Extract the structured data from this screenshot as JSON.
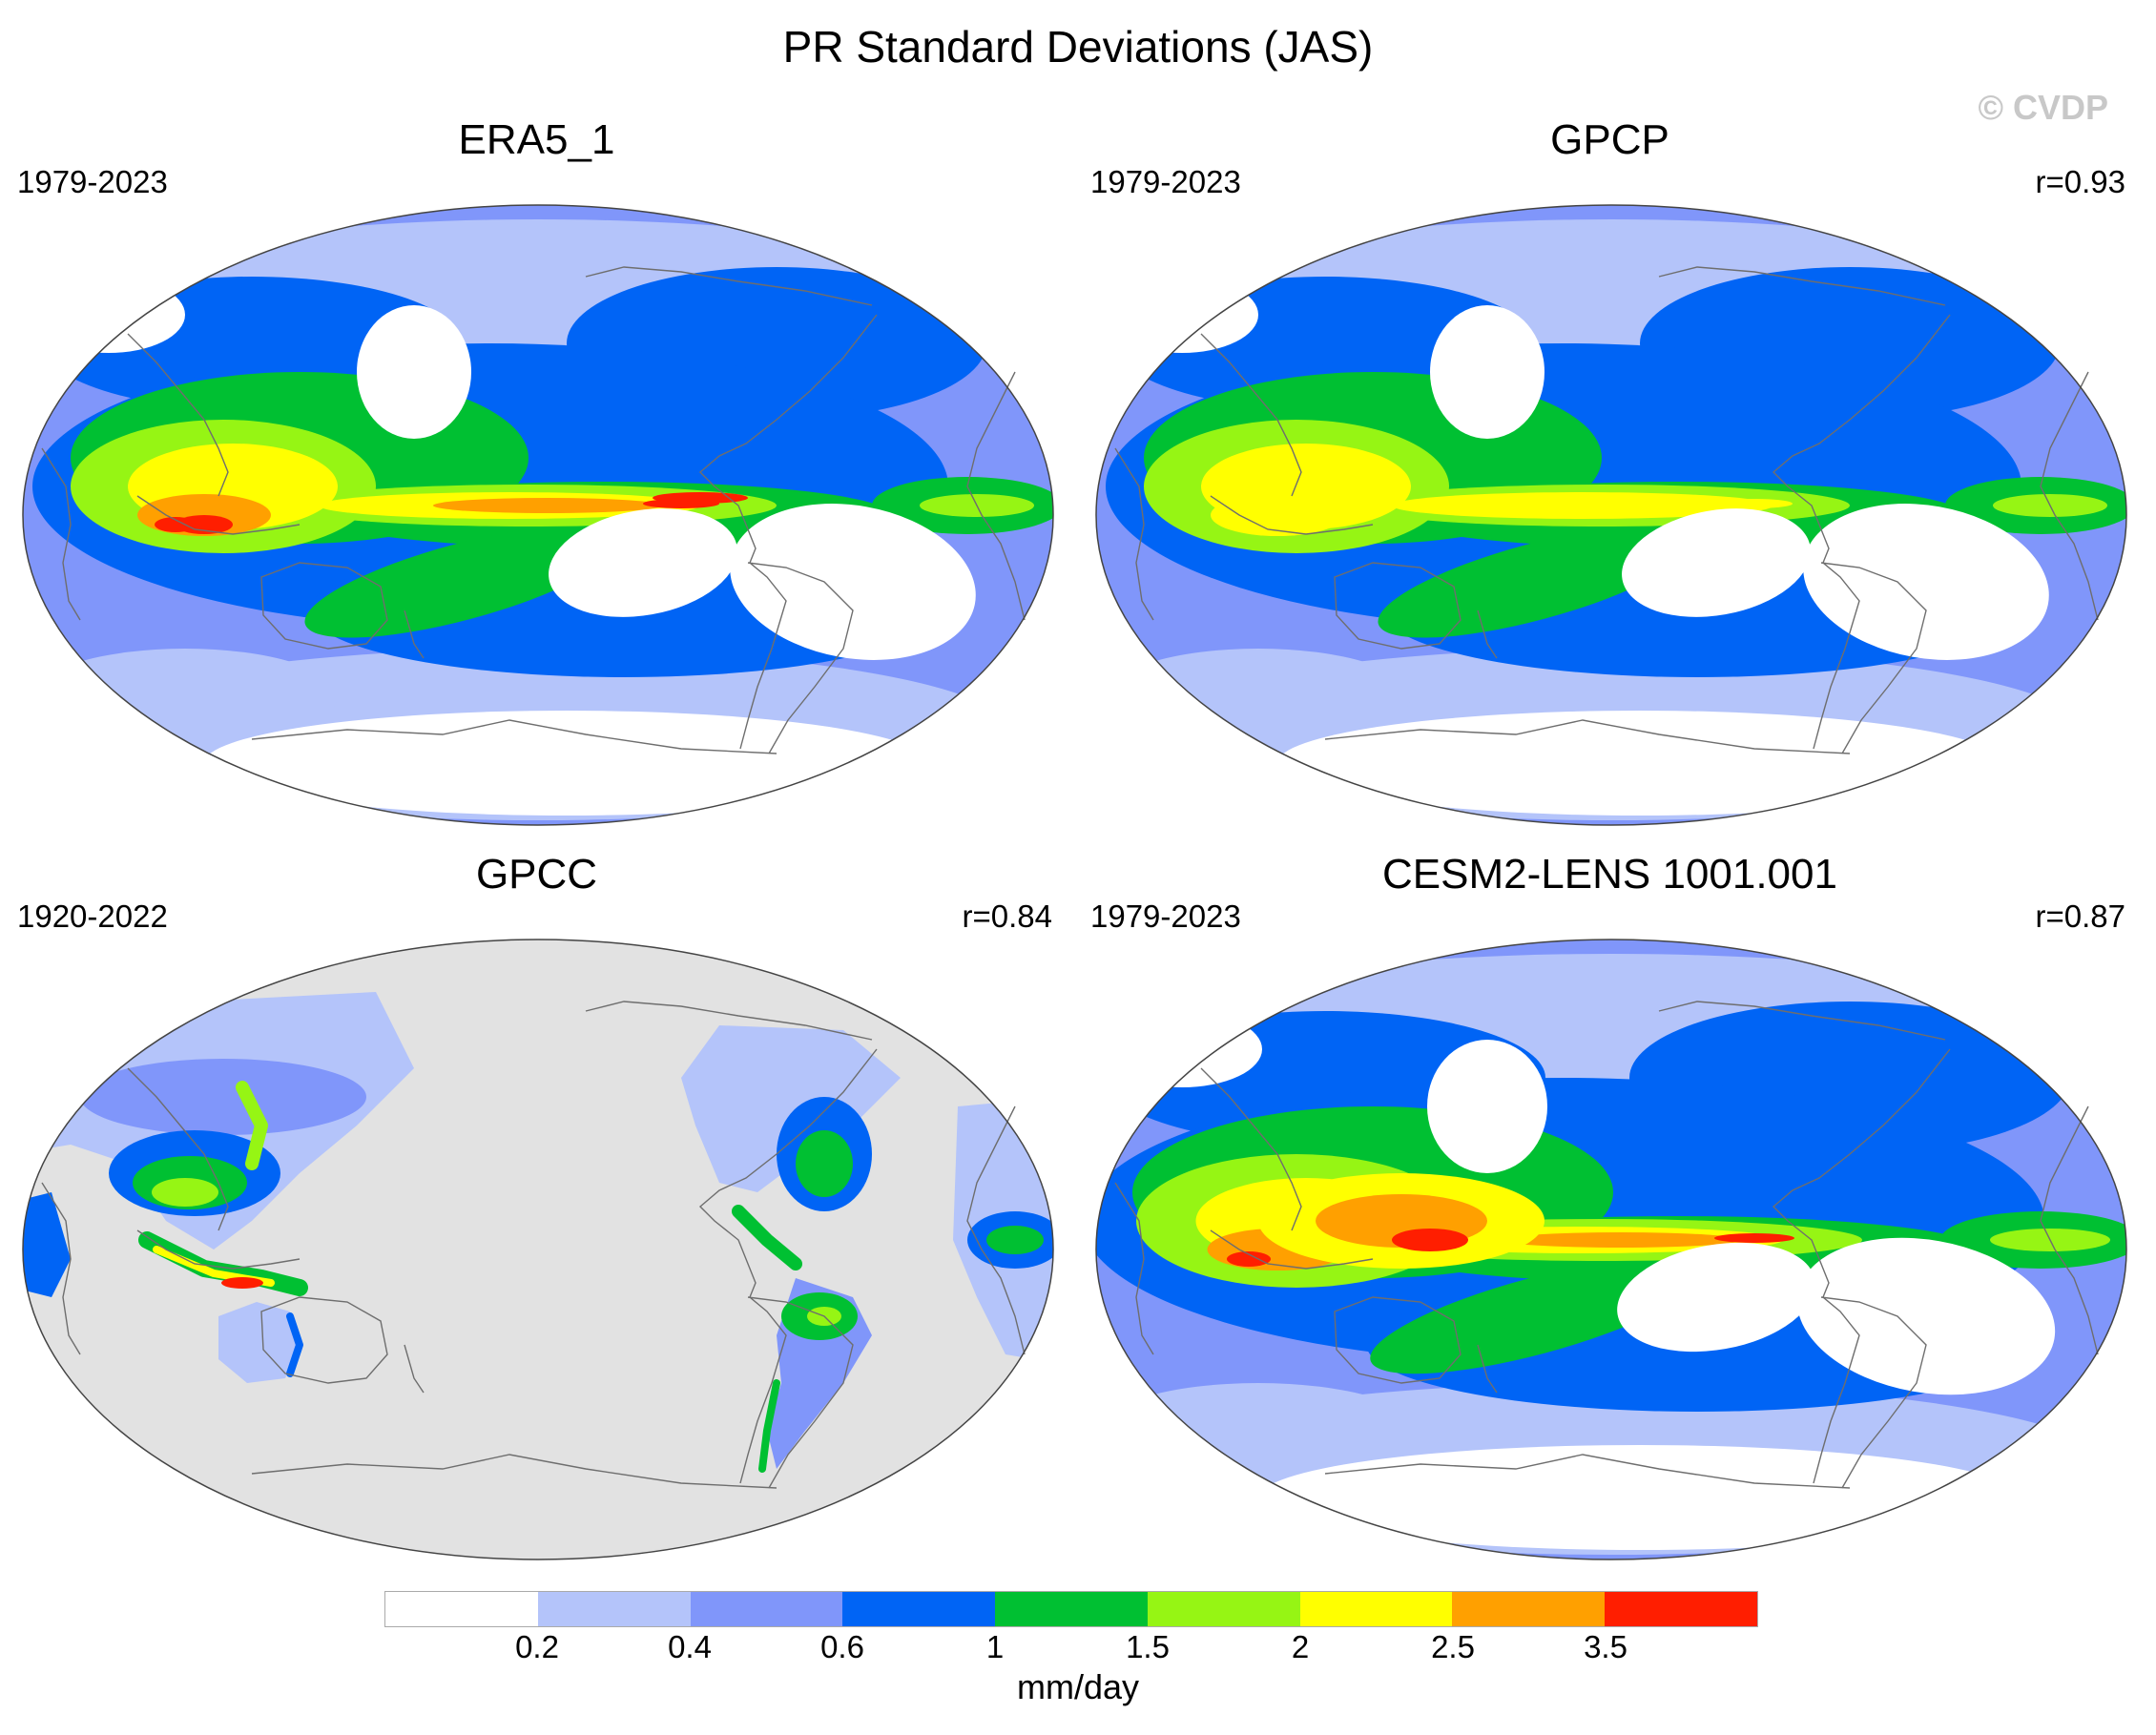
{
  "title": "PR Standard Deviations (JAS)",
  "watermark": "© CVDP",
  "colors": {
    "ocean_white": "#ffffff",
    "missing_gray": "#e2e2e2",
    "coast": "#6e6e6e"
  },
  "panels": [
    {
      "name": "ERA5_1",
      "years": "1979-2023",
      "corr": "",
      "coverage": "global"
    },
    {
      "name": "GPCP",
      "years": "1979-2023",
      "corr": "r=0.93",
      "coverage": "global"
    },
    {
      "name": "GPCC",
      "years": "1920-2022",
      "corr": "r=0.84",
      "coverage": "land-only"
    },
    {
      "name": "CESM2-LENS 1001.001",
      "years": "1979-2023",
      "corr": "r=0.87",
      "coverage": "global"
    }
  ],
  "colorbar": {
    "colors": [
      "#ffffff",
      "#b4c4fa",
      "#8096fa",
      "#0064f5",
      "#00c032",
      "#96f514",
      "#ffff00",
      "#ffa000",
      "#ff1e00"
    ],
    "labels": [
      "0.2",
      "0.4",
      "0.6",
      "1",
      "1.5",
      "2",
      "2.5",
      "3.5"
    ],
    "unit": "mm/day"
  }
}
